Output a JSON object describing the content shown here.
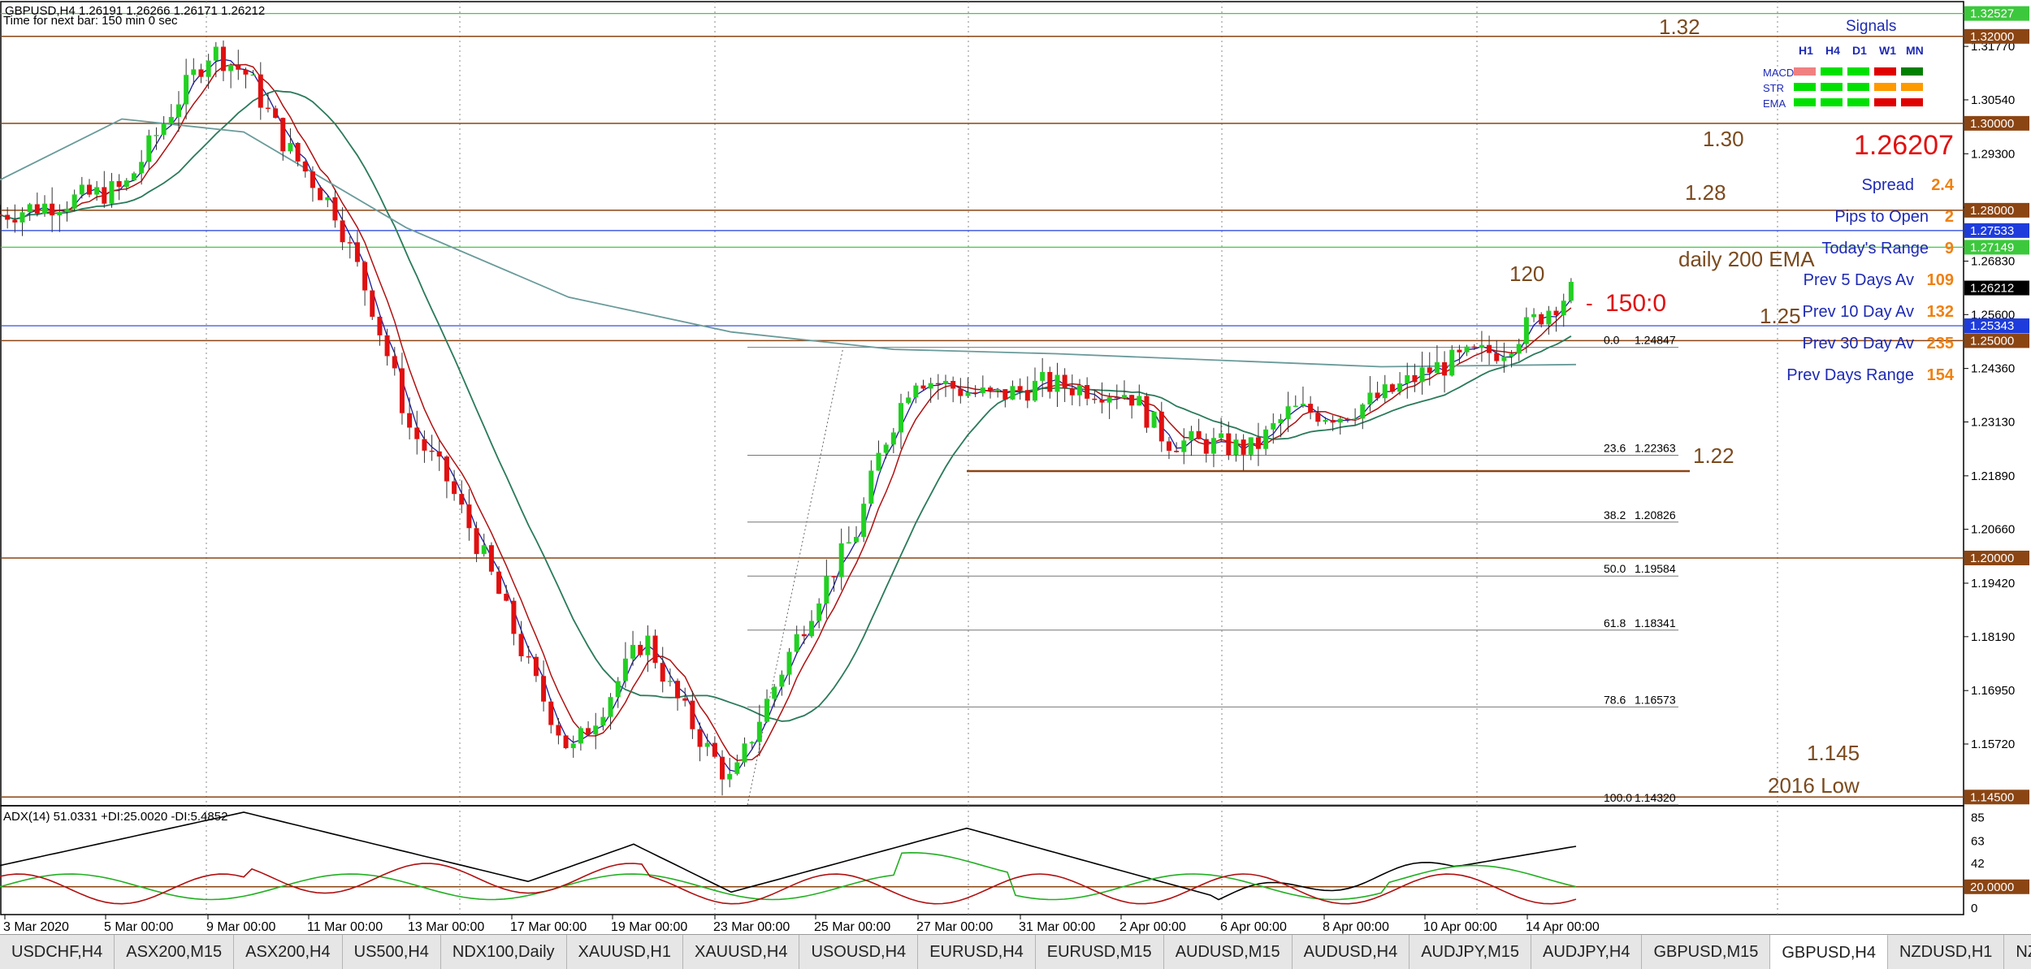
{
  "header": {
    "symbol_line": "GBPUSD,H4  1.26191 1.26266 1.26171 1.26212",
    "next_bar": "Time for next bar: 150 min 0 sec"
  },
  "annotations": {
    "l132": "1.32",
    "l130": "1.30",
    "l128": "1.28",
    "l125": "1.25",
    "l122": "1.22",
    "l1145": "1.145",
    "low2016": "2016 Low",
    "ema": "daily 200 EMA",
    "n120": "120",
    "n150": "150:0",
    "last_price": "1.26207"
  },
  "signals": {
    "title": "Signals",
    "columns": [
      "H1",
      "H4",
      "D1",
      "W1",
      "MN"
    ],
    "rows": [
      {
        "label": "MACD",
        "colors": [
          "#f08080",
          "#00e000",
          "#00e000",
          "#e00000",
          "#008000"
        ]
      },
      {
        "label": "STR",
        "colors": [
          "#00e000",
          "#00e000",
          "#00e000",
          "#ff9900",
          "#ff9900"
        ]
      },
      {
        "label": "EMA",
        "colors": [
          "#00e000",
          "#00e000",
          "#00e000",
          "#e00000",
          "#e00000"
        ]
      }
    ]
  },
  "stats": [
    {
      "label": "Spread",
      "value": "2.4"
    },
    {
      "label": "Pips to Open",
      "value": "2"
    },
    {
      "label": "Today's Range",
      "value": "9"
    },
    {
      "label": "Prev 5 Days Av",
      "value": "109"
    },
    {
      "label": "Prev 10 Day Av",
      "value": "132"
    },
    {
      "label": "Prev 30 Day Av",
      "value": "235"
    },
    {
      "label": "Prev Days Range",
      "value": "154"
    }
  ],
  "fib": [
    {
      "level": "0.0",
      "price": "1.24847"
    },
    {
      "level": "23.6",
      "price": "1.22363"
    },
    {
      "level": "38.2",
      "price": "1.20826"
    },
    {
      "level": "50.0",
      "price": "1.19584"
    },
    {
      "level": "61.8",
      "price": "1.18341"
    },
    {
      "level": "78.6",
      "price": "1.16573"
    },
    {
      "level": "100.0",
      "price": "1.14320"
    }
  ],
  "price_axis": {
    "ticks": [
      "1.31770",
      "1.30540",
      "1.29300",
      "1.28070",
      "1.26830",
      "1.25600",
      "1.24360",
      "1.23130",
      "1.21890",
      "1.20660",
      "1.19420",
      "1.18190",
      "1.16950",
      "1.15720"
    ],
    "boxes": [
      {
        "label": "1.32527",
        "bg": "#3cc83c",
        "fg": "#fff"
      },
      {
        "label": "1.32000",
        "bg": "#8b4513",
        "fg": "#fff"
      },
      {
        "label": "1.30000",
        "bg": "#8b4513",
        "fg": "#fff"
      },
      {
        "label": "1.28000",
        "bg": "#8b4513",
        "fg": "#fff"
      },
      {
        "label": "1.27533",
        "bg": "#1e3cdc",
        "fg": "#fff"
      },
      {
        "label": "1.27149",
        "bg": "#3cc83c",
        "fg": "#fff"
      },
      {
        "label": "1.26212",
        "bg": "#000000",
        "fg": "#fff"
      },
      {
        "label": "1.25343",
        "bg": "#1e3cdc",
        "fg": "#fff"
      },
      {
        "label": "1.25000",
        "bg": "#8b4513",
        "fg": "#fff"
      },
      {
        "label": "1.20000",
        "bg": "#8b4513",
        "fg": "#fff"
      },
      {
        "label": "1.14500",
        "bg": "#8b4513",
        "fg": "#fff"
      }
    ]
  },
  "adx": {
    "title": "ADX(14) 51.0331 +DI:25.0020 -DI:5.4852",
    "ticks": [
      "85",
      "63",
      "42",
      "0"
    ],
    "box": "20.0000"
  },
  "time_axis": [
    "3 Mar 2020",
    "5 Mar 00:00",
    "9 Mar 00:00",
    "11 Mar 00:00",
    "13 Mar 00:00",
    "17 Mar 00:00",
    "19 Mar 00:00",
    "23 Mar 00:00",
    "25 Mar 00:00",
    "27 Mar 00:00",
    "31 Mar 00:00",
    "2 Apr 00:00",
    "6 Apr 00:00",
    "8 Apr 00:00",
    "10 Apr 00:00",
    "14 Apr 00:00"
  ],
  "tabs": [
    "USDCHF,H4",
    "ASX200,M15",
    "ASX200,H4",
    "US500,H4",
    "NDX100,Daily",
    "XAUUSD,H1",
    "XAUUSD,H4",
    "USOUSD,H4",
    "EURUSD,H4",
    "EURUSD,M15",
    "AUDUSD,M15",
    "AUDUSD,H4",
    "AUDJPY,M15",
    "AUDJPY,H4",
    "GBPUSD,M15",
    "GBPUSD,H4",
    "NZDUSD,H1",
    "NZDU"
  ],
  "active_tab": "GBPUSD,H4",
  "chart_data": {
    "type": "candlestick",
    "symbol": "GBPUSD",
    "timeframe": "H4",
    "ohlc_last": {
      "open": 1.26191,
      "high": 1.26266,
      "low": 1.26171,
      "close": 1.26212
    },
    "ylim": [
      1.143,
      1.328
    ],
    "close_path_points": [
      [
        0,
        1.279
      ],
      [
        50,
        1.285
      ],
      [
        70,
        1.304
      ],
      [
        85,
        1.317
      ],
      [
        100,
        1.311
      ],
      [
        115,
        1.295
      ],
      [
        135,
        1.28
      ],
      [
        150,
        1.258
      ],
      [
        165,
        1.23
      ],
      [
        180,
        1.218
      ],
      [
        195,
        1.2
      ],
      [
        215,
        1.172
      ],
      [
        230,
        1.155
      ],
      [
        245,
        1.168
      ],
      [
        260,
        1.182
      ],
      [
        270,
        1.17
      ],
      [
        285,
        1.156
      ],
      [
        295,
        1.148
      ],
      [
        305,
        1.162
      ],
      [
        318,
        1.178
      ],
      [
        330,
        1.192
      ],
      [
        345,
        1.206
      ],
      [
        355,
        1.225
      ],
      [
        368,
        1.242
      ],
      [
        385,
        1.239
      ],
      [
        400,
        1.237
      ],
      [
        420,
        1.24
      ],
      [
        440,
        1.239
      ],
      [
        455,
        1.238
      ],
      [
        470,
        1.227
      ],
      [
        490,
        1.226
      ],
      [
        505,
        1.225
      ],
      [
        520,
        1.234
      ],
      [
        540,
        1.233
      ],
      [
        560,
        1.238
      ],
      [
        575,
        1.243
      ],
      [
        590,
        1.246
      ],
      [
        605,
        1.248
      ],
      [
        615,
        1.253
      ],
      [
        625,
        1.258
      ],
      [
        635,
        1.2621
      ]
    ],
    "horizontal_levels": [
      1.32527,
      1.32,
      1.3,
      1.28,
      1.27533,
      1.27149,
      1.25343,
      1.25,
      1.22,
      1.2,
      1.145
    ]
  }
}
